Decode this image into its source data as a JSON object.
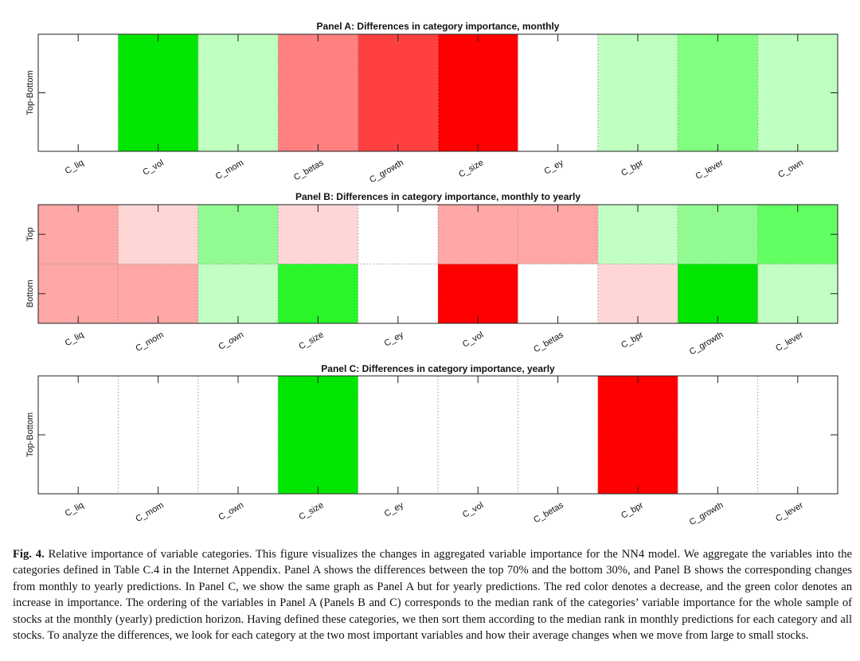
{
  "chart_data": [
    {
      "type": "heatmap",
      "title": "Panel A: Differences in category importance, monthly",
      "rows": [
        "Top-Bottom"
      ],
      "columns": [
        "C_liq",
        "C_vol",
        "C_mom",
        "C_betas",
        "C_growth",
        "C_size",
        "C_ey",
        "C_bpr",
        "C_lever",
        "C_own"
      ],
      "colors": [
        [
          "#ffffff",
          "#00e600",
          "#bfffbf",
          "#ff8080",
          "#ff4040",
          "#ff0000",
          "#ffffff",
          "#bfffbf",
          "#80ff80",
          "#bfffbf"
        ]
      ],
      "dotted_separators": true
    },
    {
      "type": "heatmap",
      "title": "Panel B: Differences in category importance, monthly to yearly",
      "rows": [
        "Top",
        "Bottom"
      ],
      "columns": [
        "C_liq",
        "C_mom",
        "C_own",
        "C_size",
        "C_ey",
        "C_vol",
        "C_betas",
        "C_bpr",
        "C_growth",
        "C_lever"
      ],
      "colors": [
        [
          "#ffa6a6",
          "#ffd6d6",
          "#91fb91",
          "#ffd6d6",
          "#ffffff",
          "#ffa6a6",
          "#ffa6a6",
          "#c2ffc2",
          "#91fb91",
          "#62ff62"
        ],
        [
          "#ffa6a6",
          "#ffa6a6",
          "#c2ffc2",
          "#29f529",
          "#ffffff",
          "#ff0000",
          "#ffffff",
          "#ffd6d6",
          "#00e600",
          "#c2ffc2"
        ]
      ],
      "dotted_separators": true
    },
    {
      "type": "heatmap",
      "title": "Panel C: Differences in category importance, yearly",
      "rows": [
        "Top-Bottom"
      ],
      "columns": [
        "C_liq",
        "C_mom",
        "C_own",
        "C_size",
        "C_ey",
        "C_vol",
        "C_betas",
        "C_bpr",
        "C_growth",
        "C_lever"
      ],
      "colors": [
        [
          "#ffffff",
          "#ffffff",
          "#ffffff",
          "#00e600",
          "#ffffff",
          "#ffffff",
          "#ffffff",
          "#ff0000",
          "#ffffff",
          "#ffffff"
        ]
      ],
      "dotted_separators": true
    }
  ],
  "caption": {
    "label": "Fig. 4.",
    "text": "Relative importance of variable categories. This figure visualizes the changes in aggregated variable importance for the NN4 model. We aggregate the variables into the categories defined in Table C.4 in the Internet Appendix. Panel A shows the differences between the top 70% and the bottom 30%, and Panel B shows the corresponding changes from monthly to yearly predictions. In Panel C, we show the same graph as Panel A but for yearly predictions. The red color denotes a decrease, and the green color denotes an increase in importance. The ordering of the variables in Panel A (Panels B and C) corresponds to the median rank of the categories’ variable importance for the whole sample of stocks at the monthly (yearly) prediction horizon. Having defined these categories, we then sort them according to the median rank in monthly predictions for each category and all stocks. To analyze the differences, we look for each category at the two most important variables and how their average changes when we move from large to small stocks."
  }
}
